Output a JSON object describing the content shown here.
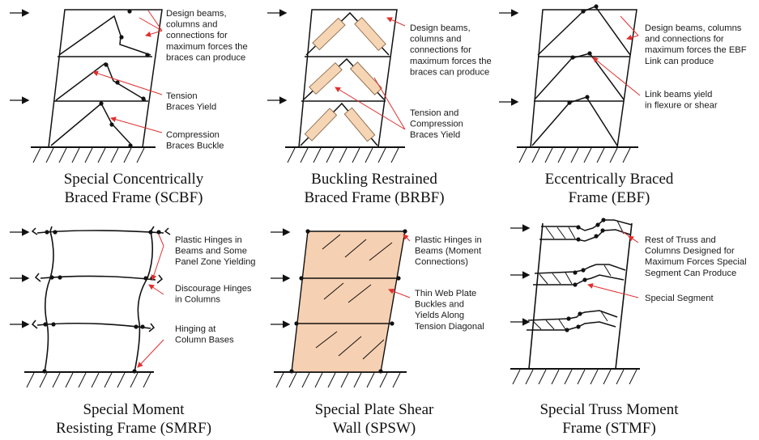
{
  "panels": [
    {
      "id": "scbf",
      "caption": [
        "Special Concentrically",
        "Braced Frame (SCBF)"
      ],
      "notes": [
        [
          "Design beams,",
          "columns and",
          "connections for",
          "maximum forces the",
          "braces can produce"
        ],
        [
          "Tension",
          "Braces Yield"
        ],
        [
          "Compression",
          "Braces Buckle"
        ]
      ]
    },
    {
      "id": "brbf",
      "caption": [
        "Buckling Restrained",
        "Braced Frame (BRBF)"
      ],
      "notes": [
        [
          "Design beams,",
          "columns and",
          "connections for",
          "maximum forces the",
          "braces can produce"
        ],
        [
          "Tension and",
          "Compression",
          "Braces Yield"
        ]
      ]
    },
    {
      "id": "ebf",
      "caption": [
        "Eccentrically Braced",
        "Frame (EBF)"
      ],
      "notes": [
        [
          "Design beams, columns",
          "and connections for",
          "maximum forces the EBF",
          "Link can produce"
        ],
        [
          "Link beams yield",
          "in flexure or shear"
        ]
      ]
    },
    {
      "id": "smrf",
      "caption": [
        "Special Moment",
        "Resisting Frame (SMRF)"
      ],
      "notes": [
        [
          "Plastic Hinges in",
          "Beams and Some",
          "Panel Zone Yielding"
        ],
        [
          "Discourage Hinges",
          "in Columns"
        ],
        [
          "Hinging at",
          "Column Bases"
        ]
      ]
    },
    {
      "id": "spsw",
      "caption": [
        "Special Plate Shear",
        "Wall (SPSW)"
      ],
      "notes": [
        [
          "Plastic Hinges in",
          "Beams (Moment",
          "Connections)"
        ],
        [
          "Thin Web Plate",
          "Buckles and",
          "Yields Along",
          "Tension Diagonal"
        ]
      ]
    },
    {
      "id": "stmf",
      "caption": [
        "Special Truss Moment",
        "Frame (STMF)"
      ],
      "notes": [
        [
          "Rest of Truss and",
          "Columns Designed for",
          "Maximum Forces Special",
          "Segment Can Produce"
        ],
        [
          "Special Segment"
        ]
      ]
    }
  ],
  "colors": {
    "leader": "#e03030",
    "brace_fill": "#f6d5b5",
    "plate_fill": "#f6d0b2",
    "line": "#111111"
  }
}
